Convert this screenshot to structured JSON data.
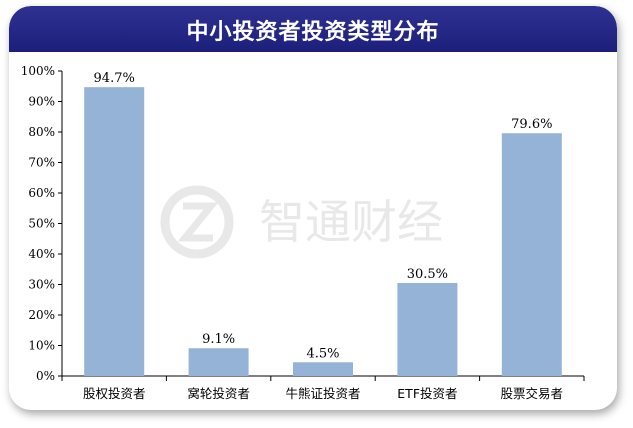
{
  "header": {
    "title": "中小投资者投资类型分布"
  },
  "watermark": {
    "text": "智通财经"
  },
  "chart_data": {
    "type": "bar",
    "title": "中小投资者投资类型分布",
    "categories": [
      "股权投资者",
      "窝轮投资者",
      "牛熊证投资者",
      "ETF投资者",
      "股票交易者"
    ],
    "values": [
      94.7,
      9.1,
      4.5,
      30.5,
      79.6
    ],
    "data_labels": [
      "94.7%",
      "9.1%",
      "4.5%",
      "30.5%",
      "79.6%"
    ],
    "y_ticks": [
      "0%",
      "10%",
      "20%",
      "30%",
      "40%",
      "50%",
      "60%",
      "70%",
      "80%",
      "90%",
      "100%"
    ],
    "ylim": [
      0,
      100
    ],
    "xlabel": "",
    "ylabel": "",
    "grid": false,
    "legend": "none",
    "bar_color": "#95b3d7"
  }
}
